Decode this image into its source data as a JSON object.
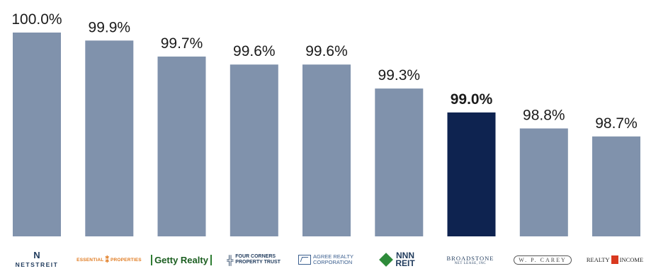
{
  "chart_data": {
    "type": "bar",
    "categories": [
      "NETSTREIT",
      "Essential Properties",
      "Getty Realty",
      "Four Corners Property Trust",
      "Agree Realty Corporation",
      "NNN REIT",
      "Broadstone Net Lease",
      "W. P. Carey",
      "Realty Income"
    ],
    "values": [
      100.0,
      99.9,
      99.7,
      99.6,
      99.6,
      99.3,
      99.0,
      98.8,
      98.7
    ],
    "data_labels": [
      "100.0%",
      "99.9%",
      "99.7%",
      "99.6%",
      "99.6%",
      "99.3%",
      "99.0%",
      "98.8%",
      "98.7%"
    ],
    "highlight_index": 6,
    "title": "",
    "xlabel": "",
    "ylabel": "",
    "ylim": [
      97.45,
      100.0
    ],
    "grid": false,
    "legend": "none",
    "colors": {
      "bar": "#8092ac",
      "highlight": "#0e2350"
    }
  },
  "logos": {
    "netstreit": {
      "mark": "N",
      "text": "NETSTREIT"
    },
    "essential": {
      "left": "ESSENTIAL",
      "sep": "⁑",
      "right": "PROPERTIES"
    },
    "getty": {
      "text": "Getty Realty"
    },
    "four_corners": {
      "icon": "╬",
      "line1": "FOUR CORNERS",
      "line2": "PROPERTY TRUST"
    },
    "agree": {
      "line1": "AGREE REALTY",
      "line2": "CORPORATION"
    },
    "nnn": {
      "line1": "NNN",
      "line2": "REIT"
    },
    "broadstone": {
      "line1": "BROADSTONE",
      "line2": "NET LEASE, INC"
    },
    "wpcarey": {
      "text": "W. P. CAREY"
    },
    "realty_income": {
      "left": "REALTY",
      "right": "INCOME"
    }
  }
}
